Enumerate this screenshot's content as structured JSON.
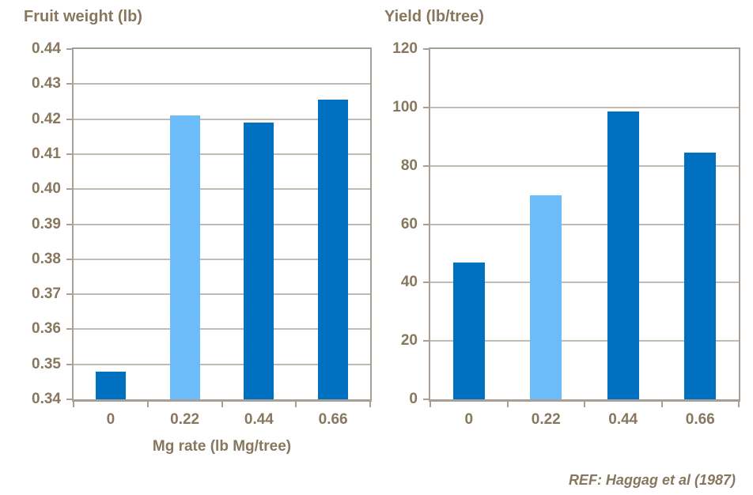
{
  "page": {
    "background": "#ffffff"
  },
  "chart_data": [
    {
      "type": "bar",
      "title": "Fruit weight (lb)",
      "categories": [
        "0",
        "0.22",
        "0.44",
        "0.66"
      ],
      "values": [
        0.348,
        0.421,
        0.419,
        0.4255
      ],
      "xlabel": "Mg rate (lb Mg/tree)",
      "ylabel": "",
      "ylim": [
        0.34,
        0.44
      ],
      "ytick_step": 0.01,
      "ytick_decimals": 2,
      "bar_colors": [
        "#0071c0",
        "#6cbcf9",
        "#0071c0",
        "#0071c0"
      ],
      "grid": true,
      "legend": "none"
    },
    {
      "type": "bar",
      "title": "Yield (lb/tree)",
      "categories": [
        "0",
        "0.22",
        "0.44",
        "0.66"
      ],
      "values": [
        47,
        70,
        98.5,
        84.5
      ],
      "xlabel": "",
      "ylabel": "",
      "ylim": [
        0,
        120
      ],
      "ytick_step": 20,
      "ytick_decimals": 0,
      "bar_colors": [
        "#0071c0",
        "#6cbcf9",
        "#0071c0",
        "#0071c0"
      ],
      "grid": true,
      "legend": "none"
    }
  ],
  "footer": {
    "reference": "REF: Haggag et al (1987)"
  },
  "palette": {
    "bar_dark_blue": "#0071c0",
    "bar_light_blue": "#6cbcf9",
    "text_brown": "#87775e",
    "gridline": "#c3bab1",
    "axis_border": "#a8a096",
    "axis_bottom": "#a2998f",
    "background": "#ffffff"
  }
}
